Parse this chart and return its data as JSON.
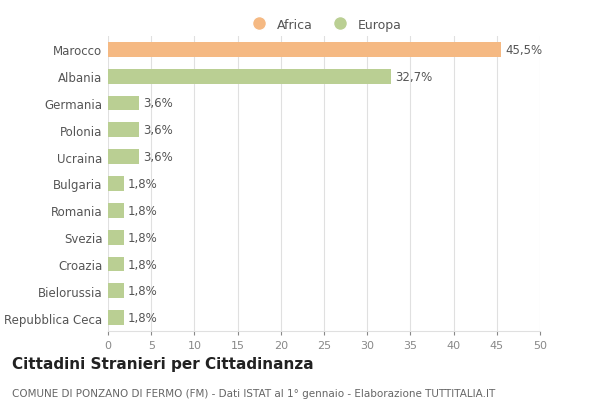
{
  "categories": [
    "Marocco",
    "Albania",
    "Germania",
    "Polonia",
    "Ucraina",
    "Bulgaria",
    "Romania",
    "Svezia",
    "Croazia",
    "Bielorussia",
    "Repubblica Ceca"
  ],
  "values": [
    45.5,
    32.7,
    3.6,
    3.6,
    3.6,
    1.8,
    1.8,
    1.8,
    1.8,
    1.8,
    1.8
  ],
  "labels": [
    "45,5%",
    "32,7%",
    "3,6%",
    "3,6%",
    "3,6%",
    "1,8%",
    "1,8%",
    "1,8%",
    "1,8%",
    "1,8%",
    "1,8%"
  ],
  "colors": [
    "#F5B983",
    "#BACF93",
    "#BACF93",
    "#BACF93",
    "#BACF93",
    "#BACF93",
    "#BACF93",
    "#BACF93",
    "#BACF93",
    "#BACF93",
    "#BACF93"
  ],
  "xlim": [
    0,
    50
  ],
  "xticks": [
    0,
    5,
    10,
    15,
    20,
    25,
    30,
    35,
    40,
    45,
    50
  ],
  "legend_labels": [
    "Africa",
    "Europa"
  ],
  "legend_colors": [
    "#F5B983",
    "#BACF93"
  ],
  "title": "Cittadini Stranieri per Cittadinanza",
  "subtitle": "COMUNE DI PONZANO DI FERMO (FM) - Dati ISTAT al 1° gennaio - Elaborazione TUTTITALIA.IT",
  "background_color": "#ffffff",
  "grid_color": "#e0e0e0",
  "bar_height": 0.55,
  "label_fontsize": 8.5,
  "ytick_fontsize": 8.5,
  "xtick_fontsize": 8,
  "title_fontsize": 11,
  "subtitle_fontsize": 7.5,
  "legend_fontsize": 9
}
